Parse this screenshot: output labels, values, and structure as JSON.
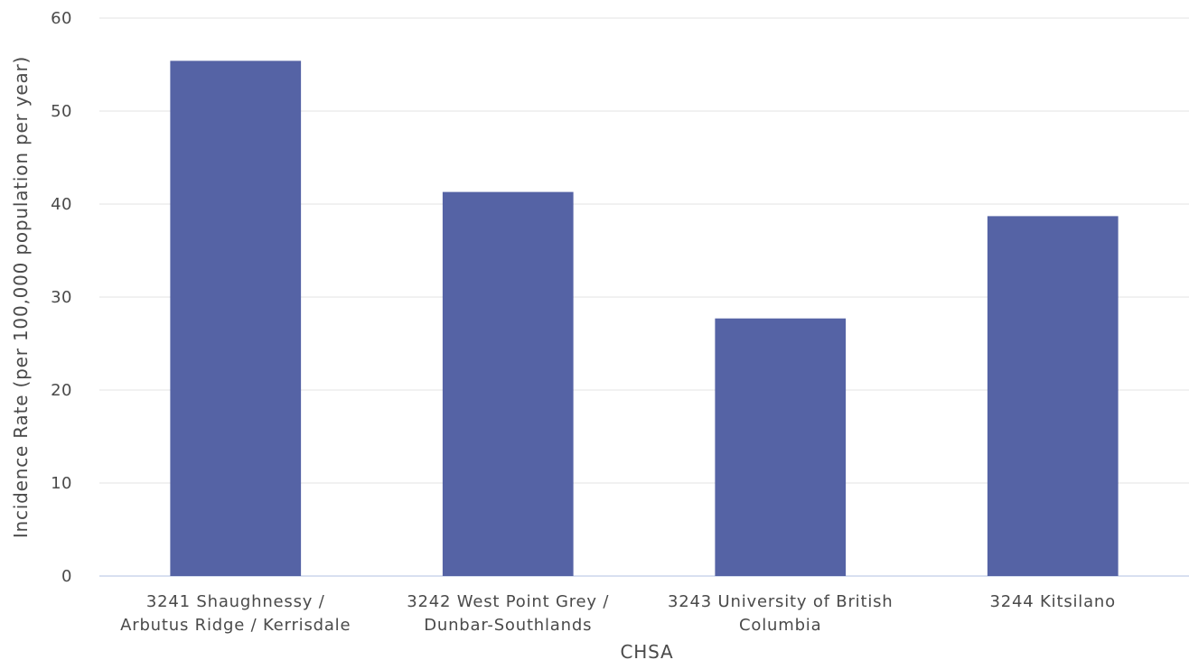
{
  "chart_data": {
    "type": "bar",
    "title": "",
    "xlabel": "CHSA",
    "ylabel": "Incidence Rate (per 100,000 population per year)",
    "ylim": [
      0,
      60
    ],
    "yticks": [
      0,
      10,
      20,
      30,
      40,
      50,
      60
    ],
    "grid": true,
    "bar_color": "#5563a5",
    "categories": [
      [
        "3241 Shaughnessy /",
        "Arbutus Ridge / Kerrisdale"
      ],
      [
        "3242 West Point Grey /",
        "Dunbar-Southlands"
      ],
      [
        "3243 University of British",
        "Columbia"
      ],
      [
        "3244 Kitsilano"
      ]
    ],
    "values": [
      55.4,
      41.3,
      27.7,
      38.7
    ]
  }
}
